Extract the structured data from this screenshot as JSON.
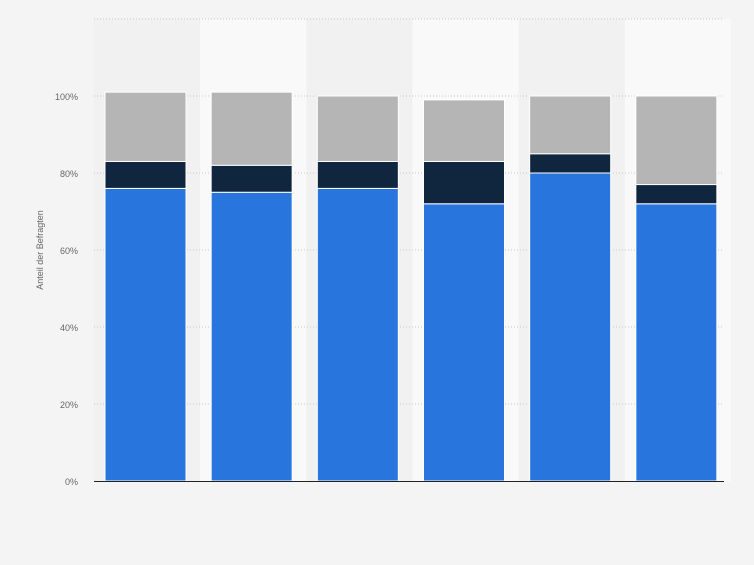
{
  "chart_data": {
    "type": "bar",
    "stacked": true,
    "ylabel": "Anteil der Befragten",
    "ylim": [
      0,
      120
    ],
    "yticks": [
      0,
      20,
      40,
      60,
      80,
      100
    ],
    "ytick_labels": [
      "0%",
      "20%",
      "40%",
      "60%",
      "80%",
      "100%"
    ],
    "grid": true,
    "categories": [
      "",
      "",
      "",
      "",
      "",
      ""
    ],
    "series": [
      {
        "color": "#2876dd",
        "values": [
          76,
          75,
          76,
          72,
          80,
          72
        ]
      },
      {
        "color": "#10263f",
        "values": [
          7,
          7,
          7,
          11,
          5,
          5
        ]
      },
      {
        "color": "#b5b5b5",
        "values": [
          18,
          19,
          17,
          16,
          15,
          23
        ]
      }
    ]
  }
}
